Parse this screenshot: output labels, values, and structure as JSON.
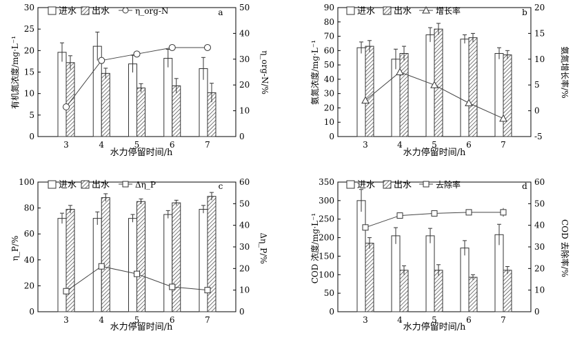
{
  "chart_data": [
    {
      "panel": "a",
      "type": "bar",
      "categories": [
        "3",
        "4",
        "5",
        "6",
        "7"
      ],
      "xlabel": "水力停留时间/h",
      "ylabel_left": "有机氮浓度/mg·L⁻¹",
      "ylabel_right": "η_org-N/%",
      "ylim_left": [
        0,
        30
      ],
      "yticks_left": [
        0,
        5,
        10,
        15,
        20,
        25,
        30
      ],
      "ylim_right": [
        0,
        50
      ],
      "yticks_right": [
        0,
        10,
        20,
        30,
        40,
        50
      ],
      "legend": [
        "进水",
        "出水",
        "η_org-N"
      ],
      "series": [
        {
          "name": "进水",
          "axis": "left",
          "kind": "bar",
          "pattern": "open",
          "values": [
            19.6,
            21.0,
            16.9,
            18.2,
            15.8
          ],
          "errors": [
            2.2,
            3.3,
            2.0,
            2.1,
            2.6
          ]
        },
        {
          "name": "出水",
          "axis": "left",
          "kind": "bar",
          "pattern": "hatch",
          "values": [
            17.2,
            14.7,
            11.3,
            11.8,
            10.2
          ],
          "errors": [
            1.6,
            1.2,
            1.0,
            1.7,
            2.2
          ]
        },
        {
          "name": "η_org-N",
          "axis": "right",
          "kind": "line",
          "marker": "circle",
          "values": [
            11.5,
            29.5,
            32,
            34.5,
            34.5
          ],
          "errors": [
            0,
            0,
            1.0,
            1.0,
            0
          ]
        }
      ]
    },
    {
      "panel": "b",
      "type": "bar",
      "categories": [
        "3",
        "4",
        "5",
        "6",
        "7"
      ],
      "xlabel": "水力停留时间/h",
      "ylabel_left": "氨氮浓度/mg·L⁻¹",
      "ylabel_right": "氨氮增长率/%",
      "ylim_left": [
        0,
        90
      ],
      "yticks_left": [
        0,
        10,
        20,
        30,
        40,
        50,
        60,
        70,
        80,
        90
      ],
      "ylim_right": [
        -5,
        20
      ],
      "yticks_right": [
        -5,
        0,
        5,
        10,
        15,
        20
      ],
      "legend": [
        "进水",
        "出水",
        "增长率"
      ],
      "series": [
        {
          "name": "进水",
          "axis": "left",
          "kind": "bar",
          "pattern": "open",
          "values": [
            62,
            54,
            71,
            68,
            58
          ],
          "errors": [
            4,
            7,
            5,
            3,
            4
          ]
        },
        {
          "name": "出水",
          "axis": "left",
          "kind": "bar",
          "pattern": "hatch",
          "values": [
            63,
            58,
            75,
            69,
            57
          ],
          "errors": [
            4,
            5,
            4,
            3,
            3
          ]
        },
        {
          "name": "增长率",
          "axis": "right",
          "kind": "line",
          "marker": "triangle",
          "values": [
            2.0,
            7.5,
            5.0,
            1.5,
            -1.5
          ],
          "errors": [
            0.5,
            0.5,
            0.6,
            0.5,
            0.5
          ]
        }
      ]
    },
    {
      "panel": "c",
      "type": "bar",
      "categories": [
        "3",
        "4",
        "5",
        "6",
        "7"
      ],
      "xlabel": "水力停留时间/h",
      "ylabel_left": "η_P/%",
      "ylabel_right": "Δη_P/%",
      "ylim_left": [
        0,
        100
      ],
      "yticks_left": [
        0,
        20,
        40,
        60,
        80,
        100
      ],
      "ylim_right": [
        0,
        60
      ],
      "yticks_right": [
        0,
        10,
        20,
        30,
        40,
        50,
        60
      ],
      "legend": [
        "进水",
        "出水",
        "Δη_P"
      ],
      "series": [
        {
          "name": "进水",
          "axis": "left",
          "kind": "bar",
          "pattern": "open",
          "values": [
            72,
            72,
            72,
            75,
            79
          ],
          "errors": [
            4,
            5,
            3,
            3,
            3
          ]
        },
        {
          "name": "出水",
          "axis": "left",
          "kind": "bar",
          "pattern": "hatch",
          "values": [
            79,
            88,
            85,
            84,
            89
          ],
          "errors": [
            3,
            3,
            2,
            2,
            3
          ]
        },
        {
          "name": "Δη_P",
          "axis": "right",
          "kind": "line",
          "marker": "square",
          "values": [
            9.5,
            21,
            17.5,
            11.5,
            10
          ],
          "errors": [
            1,
            1,
            1,
            1,
            1
          ]
        }
      ]
    },
    {
      "panel": "d",
      "type": "bar",
      "categories": [
        "3",
        "4",
        "5",
        "6",
        "7"
      ],
      "xlabel": "水力停留时间/h",
      "ylabel_left": "COD 浓度/mg·L⁻¹",
      "ylabel_right": "COD 去除率/%",
      "ylim_left": [
        0,
        350
      ],
      "yticks_left": [
        0,
        50,
        100,
        150,
        200,
        250,
        300,
        350
      ],
      "ylim_right": [
        0,
        60
      ],
      "yticks_right": [
        0,
        10,
        20,
        30,
        40,
        50,
        60
      ],
      "legend": [
        "进水",
        "出水",
        "去除率"
      ],
      "series": [
        {
          "name": "进水",
          "axis": "left",
          "kind": "bar",
          "pattern": "open",
          "values": [
            300,
            205,
            205,
            172,
            208
          ],
          "errors": [
            30,
            22,
            20,
            20,
            28
          ]
        },
        {
          "name": "出水",
          "axis": "left",
          "kind": "bar",
          "pattern": "hatch",
          "values": [
            185,
            112,
            112,
            93,
            112
          ],
          "errors": [
            15,
            12,
            15,
            7,
            10
          ]
        },
        {
          "name": "去除率",
          "axis": "right",
          "kind": "line",
          "marker": "square",
          "values": [
            39,
            44.5,
            45.5,
            46,
            46
          ],
          "errors": [
            1,
            1,
            0.8,
            1,
            2
          ]
        }
      ]
    }
  ]
}
